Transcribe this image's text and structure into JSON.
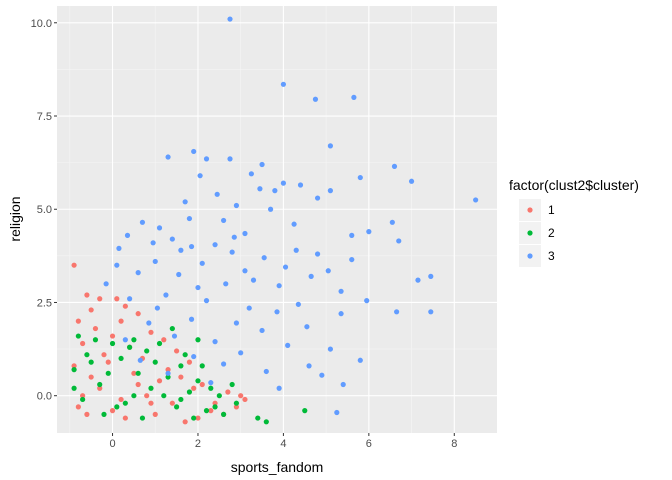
{
  "chart_data": {
    "type": "scatter",
    "title": "",
    "xlabel": "sports_fandom",
    "ylabel": "religion",
    "xlim": [
      -1.3,
      9.0
    ],
    "ylim": [
      -1.0,
      10.45
    ],
    "x_ticks": [
      0,
      2,
      4,
      6,
      8
    ],
    "x_tick_labels": [
      "0",
      "2",
      "4",
      "6",
      "8"
    ],
    "y_ticks": [
      0,
      2.5,
      5,
      7.5,
      10
    ],
    "y_tick_labels": [
      "0.0",
      "2.5",
      "5.0",
      "7.5",
      "10.0"
    ],
    "grid": true,
    "legend_position": "right",
    "legend": {
      "title": "factor(clust2$cluster)",
      "entries": [
        {
          "label": "1",
          "color": "#F8766D"
        },
        {
          "label": "2",
          "color": "#00BA38"
        },
        {
          "label": "3",
          "color": "#619CFF"
        }
      ]
    },
    "series": [
      {
        "name": "1",
        "color": "#F8766D",
        "points": [
          [
            -0.9,
            3.5
          ],
          [
            -0.6,
            2.7
          ],
          [
            -0.3,
            2.6
          ],
          [
            0.1,
            2.6
          ],
          [
            0.3,
            2.4
          ],
          [
            -0.5,
            2.3
          ],
          [
            0.6,
            2.2
          ],
          [
            -0.8,
            2.0
          ],
          [
            0.2,
            2.0
          ],
          [
            -0.4,
            1.8
          ],
          [
            0.9,
            1.7
          ],
          [
            0.0,
            1.6
          ],
          [
            1.2,
            1.5
          ],
          [
            -0.7,
            1.4
          ],
          [
            0.4,
            1.3
          ],
          [
            1.5,
            1.2
          ],
          [
            -0.2,
            1.1
          ],
          [
            0.7,
            1.0
          ],
          [
            1.8,
            0.9
          ],
          [
            -0.9,
            0.8
          ],
          [
            0.5,
            0.6
          ],
          [
            1.1,
            0.4
          ],
          [
            2.1,
            0.3
          ],
          [
            -0.3,
            0.2
          ],
          [
            0.8,
            0.0
          ],
          [
            1.4,
            -0.2
          ],
          [
            2.3,
            -0.4
          ],
          [
            -0.6,
            -0.5
          ],
          [
            0.3,
            -0.6
          ],
          [
            1.7,
            -0.7
          ],
          [
            2.9,
            -0.3
          ],
          [
            3.1,
            -0.1
          ],
          [
            2.6,
            -0.5
          ],
          [
            -0.8,
            -0.3
          ],
          [
            0.0,
            -0.4
          ],
          [
            1.0,
            -0.5
          ],
          [
            2.0,
            -0.6
          ],
          [
            3.0,
            0.0
          ],
          [
            2.7,
            0.1
          ],
          [
            -0.5,
            0.5
          ],
          [
            0.6,
            0.3
          ],
          [
            1.3,
            0.7
          ],
          [
            1.9,
            0.2
          ],
          [
            -0.1,
            0.9
          ],
          [
            0.9,
            -0.2
          ],
          [
            2.4,
            -0.2
          ],
          [
            1.6,
            0.5
          ],
          [
            -0.7,
            0.0
          ],
          [
            0.2,
            -0.1
          ]
        ]
      },
      {
        "name": "2",
        "color": "#00BA38",
        "points": [
          [
            -0.8,
            1.6
          ],
          [
            -0.4,
            1.5
          ],
          [
            0.0,
            1.4
          ],
          [
            0.4,
            1.3
          ],
          [
            0.8,
            1.2
          ],
          [
            -0.6,
            1.1
          ],
          [
            0.2,
            1.0
          ],
          [
            1.0,
            0.9
          ],
          [
            1.6,
            0.8
          ],
          [
            -0.9,
            0.7
          ],
          [
            0.6,
            0.6
          ],
          [
            1.3,
            0.5
          ],
          [
            2.0,
            0.4
          ],
          [
            -0.3,
            0.3
          ],
          [
            0.9,
            0.2
          ],
          [
            1.8,
            0.1
          ],
          [
            2.5,
            0.0
          ],
          [
            -0.7,
            -0.1
          ],
          [
            0.3,
            -0.2
          ],
          [
            1.5,
            -0.3
          ],
          [
            2.2,
            -0.4
          ],
          [
            3.4,
            -0.6
          ],
          [
            3.6,
            -0.7
          ],
          [
            4.5,
            -0.4
          ],
          [
            2.9,
            -0.2
          ],
          [
            -0.2,
            -0.5
          ],
          [
            0.7,
            -0.6
          ],
          [
            1.9,
            -0.6
          ],
          [
            2.6,
            -0.5
          ],
          [
            -0.5,
            0.9
          ],
          [
            0.5,
            1.5
          ],
          [
            1.1,
            1.4
          ],
          [
            1.7,
            1.1
          ],
          [
            2.1,
            0.8
          ],
          [
            -0.1,
            0.6
          ],
          [
            1.2,
            0.0
          ],
          [
            2.3,
            0.2
          ],
          [
            0.1,
            -0.3
          ],
          [
            1.4,
            1.8
          ],
          [
            2.0,
            1.5
          ],
          [
            2.8,
            0.3
          ],
          [
            -0.9,
            0.2
          ],
          [
            0.5,
            0.0
          ],
          [
            1.6,
            -0.1
          ],
          [
            2.4,
            -0.3
          ]
        ]
      },
      {
        "name": "3",
        "color": "#619CFF",
        "points": [
          [
            2.75,
            10.1
          ],
          [
            4.0,
            8.35
          ],
          [
            4.75,
            7.95
          ],
          [
            5.65,
            8.0
          ],
          [
            1.3,
            6.4
          ],
          [
            1.9,
            6.55
          ],
          [
            2.2,
            6.35
          ],
          [
            2.75,
            6.35
          ],
          [
            3.5,
            6.2
          ],
          [
            5.1,
            6.7
          ],
          [
            6.6,
            6.15
          ],
          [
            2.05,
            5.9
          ],
          [
            3.25,
            5.95
          ],
          [
            5.8,
            5.85
          ],
          [
            7.0,
            5.75
          ],
          [
            4.0,
            5.7
          ],
          [
            4.4,
            5.65
          ],
          [
            5.1,
            5.5
          ],
          [
            2.45,
            5.4
          ],
          [
            3.8,
            5.5
          ],
          [
            8.5,
            5.25
          ],
          [
            4.8,
            5.3
          ],
          [
            2.9,
            5.1
          ],
          [
            3.7,
            5.0
          ],
          [
            1.8,
            4.75
          ],
          [
            0.7,
            4.65
          ],
          [
            6.55,
            4.65
          ],
          [
            1.1,
            4.5
          ],
          [
            3.1,
            4.35
          ],
          [
            5.6,
            4.3
          ],
          [
            0.35,
            4.3
          ],
          [
            1.4,
            4.2
          ],
          [
            6.7,
            4.15
          ],
          [
            2.4,
            4.05
          ],
          [
            1.85,
            4.0
          ],
          [
            0.15,
            3.95
          ],
          [
            4.3,
            3.9
          ],
          [
            2.8,
            3.85
          ],
          [
            4.8,
            3.8
          ],
          [
            3.55,
            3.7
          ],
          [
            5.6,
            3.65
          ],
          [
            1.0,
            3.6
          ],
          [
            2.1,
            3.55
          ],
          [
            4.05,
            3.45
          ],
          [
            3.1,
            3.35
          ],
          [
            0.6,
            3.3
          ],
          [
            1.55,
            3.25
          ],
          [
            7.45,
            3.2
          ],
          [
            7.15,
            3.1
          ],
          [
            -0.15,
            3.0
          ],
          [
            2.65,
            3.0
          ],
          [
            3.9,
            2.95
          ],
          [
            5.35,
            2.8
          ],
          [
            1.25,
            2.7
          ],
          [
            0.4,
            2.6
          ],
          [
            2.2,
            2.55
          ],
          [
            4.35,
            2.45
          ],
          [
            3.2,
            2.35
          ],
          [
            6.65,
            2.25
          ],
          [
            7.45,
            2.25
          ],
          [
            5.35,
            2.2
          ],
          [
            1.85,
            2.05
          ],
          [
            0.85,
            1.95
          ],
          [
            2.9,
            1.95
          ],
          [
            4.55,
            1.85
          ],
          [
            3.5,
            1.75
          ],
          [
            1.45,
            1.6
          ],
          [
            0.3,
            1.5
          ],
          [
            2.4,
            1.45
          ],
          [
            4.1,
            1.35
          ],
          [
            5.1,
            1.25
          ],
          [
            3.0,
            1.15
          ],
          [
            1.9,
            1.05
          ],
          [
            0.65,
            0.95
          ],
          [
            2.6,
            0.85
          ],
          [
            4.6,
            0.8
          ],
          [
            3.6,
            0.65
          ],
          [
            1.3,
            0.6
          ],
          [
            5.8,
            0.95
          ],
          [
            5.4,
            0.3
          ],
          [
            2.3,
            0.35
          ],
          [
            3.9,
            0.2
          ],
          [
            4.9,
            0.55
          ],
          [
            5.25,
            -0.45
          ],
          [
            6.0,
            4.4
          ],
          [
            0.95,
            4.1
          ],
          [
            2.6,
            4.7
          ],
          [
            3.3,
            3.1
          ],
          [
            1.6,
            3.9
          ],
          [
            4.65,
            3.2
          ],
          [
            0.1,
            3.5
          ],
          [
            2.0,
            2.9
          ],
          [
            3.85,
            2.25
          ],
          [
            5.05,
            3.35
          ],
          [
            1.05,
            2.35
          ],
          [
            2.85,
            4.25
          ],
          [
            4.25,
            4.6
          ],
          [
            1.7,
            5.2
          ],
          [
            3.45,
            5.55
          ],
          [
            5.95,
            2.55
          ]
        ]
      }
    ]
  }
}
